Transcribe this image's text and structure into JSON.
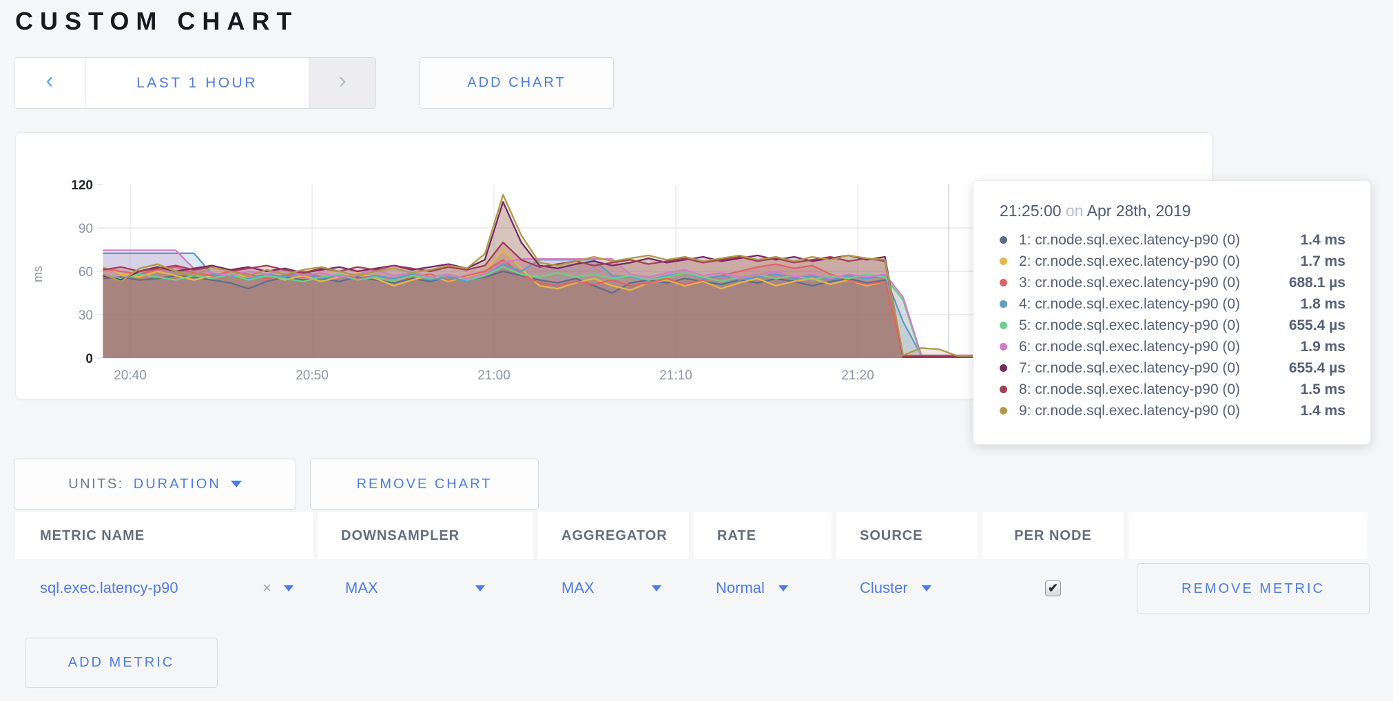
{
  "page": {
    "title": "CUSTOM CHART",
    "background": "#f5f6f7",
    "accent_blue": "#4d7ce2"
  },
  "toolbar": {
    "prev_icon": "‹",
    "next_icon": "›",
    "time_range_label": "LAST 1 HOUR",
    "add_chart_label": "ADD CHART"
  },
  "controls": {
    "units_label": "UNITS:",
    "units_value": "DURATION",
    "remove_chart_label": "REMOVE CHART",
    "add_metric_label": "ADD METRIC"
  },
  "tooltip": {
    "time": "21:25:00",
    "sep": " on ",
    "date": "Apr 28th, 2019",
    "rows": [
      {
        "color": "#5F6C8C",
        "label": "1: cr.node.sql.exec.latency-p90 (0)",
        "value": "1.4 ms"
      },
      {
        "color": "#E4B748",
        "label": "2: cr.node.sql.exec.latency-p90 (0)",
        "value": "1.7 ms"
      },
      {
        "color": "#DD6468",
        "label": "3: cr.node.sql.exec.latency-p90 (0)",
        "value": "688.1 µs"
      },
      {
        "color": "#5C9DC8",
        "label": "4: cr.node.sql.exec.latency-p90 (0)",
        "value": "1.8 ms"
      },
      {
        "color": "#6BD08B",
        "label": "5: cr.node.sql.exec.latency-p90 (0)",
        "value": "655.4 µs"
      },
      {
        "color": "#CF7EC4",
        "label": "6: cr.node.sql.exec.latency-p90 (0)",
        "value": "1.9 ms"
      },
      {
        "color": "#752A63",
        "label": "7: cr.node.sql.exec.latency-p90 (0)",
        "value": "655.4 µs"
      },
      {
        "color": "#A43E55",
        "label": "8: cr.node.sql.exec.latency-p90 (0)",
        "value": "1.5 ms"
      },
      {
        "color": "#B09A4E",
        "label": "9: cr.node.sql.exec.latency-p90 (0)",
        "value": "1.4 ms"
      }
    ]
  },
  "table": {
    "headers": [
      "METRIC NAME",
      "DOWNSAMPLER",
      "AGGREGATOR",
      "RATE",
      "SOURCE",
      "PER NODE"
    ],
    "row": {
      "metric_name": "sql.exec.latency-p90",
      "clear_icon": "×",
      "downsampler": "MAX",
      "aggregator": "MAX",
      "rate": "Normal",
      "source": "Cluster",
      "per_node_checked": true,
      "check_icon": "✔",
      "remove_metric_label": "REMOVE METRIC"
    }
  },
  "chart_data": {
    "type": "area",
    "title": "",
    "ylabel": "ms",
    "ylim": [
      0,
      120
    ],
    "yticks": [
      0,
      30,
      60,
      90,
      120
    ],
    "xticks": [
      {
        "label": "20:40",
        "min": 0
      },
      {
        "label": "20:50",
        "min": 10
      },
      {
        "label": "21:00",
        "min": 20
      },
      {
        "label": "21:10",
        "min": 30
      },
      {
        "label": "21:20",
        "min": 40
      }
    ],
    "hover_min": 45,
    "x_start_min": -1.5,
    "x_step_min": 1,
    "grid": true,
    "legend_position": "tooltip",
    "series": [
      {
        "name": "1: cr.node.sql.exec.latency-p90 (0)",
        "color": "#5F6C8C",
        "values": [
          55,
          56,
          54,
          55,
          57,
          56,
          54,
          52,
          48,
          53,
          56,
          54,
          55,
          53,
          56,
          54,
          52,
          55,
          53,
          56,
          54,
          56,
          60,
          57,
          54,
          52,
          55,
          50,
          45,
          52,
          54,
          52,
          55,
          53,
          51,
          54,
          52,
          55,
          53,
          50,
          53,
          55,
          52,
          54,
          1.4,
          1.4,
          1.4,
          1.4,
          1.4,
          1.4
        ]
      },
      {
        "name": "2: cr.node.sql.exec.latency-p90 (0)",
        "color": "#E4B748",
        "values": [
          63,
          58,
          56,
          60,
          57,
          54,
          57,
          60,
          55,
          58,
          54,
          57,
          53,
          56,
          59,
          55,
          50,
          54,
          57,
          53,
          56,
          60,
          75,
          62,
          50,
          48,
          52,
          55,
          50,
          47,
          52,
          54,
          50,
          53,
          48,
          52,
          55,
          50,
          53,
          55,
          51,
          54,
          50,
          53,
          1.7,
          1.7,
          1.7,
          1.7,
          1.7,
          1.7
        ]
      },
      {
        "name": "3: cr.node.sql.exec.latency-p90 (0)",
        "color": "#DD6468",
        "values": [
          62,
          60,
          58,
          61,
          63,
          59,
          57,
          60,
          58,
          55,
          57,
          60,
          56,
          58,
          55,
          57,
          53,
          56,
          58,
          54,
          57,
          60,
          68,
          58,
          52,
          50,
          53,
          51,
          54,
          50,
          52,
          55,
          51,
          54,
          57,
          60,
          63,
          65,
          62,
          64,
          58,
          54,
          51,
          53,
          0.7,
          0.7,
          0.7,
          0.7,
          0.7,
          0.7
        ]
      },
      {
        "name": "4: cr.node.sql.exec.latency-p90 (0)",
        "color": "#5C9DC8",
        "values": [
          72.5,
          72.5,
          72.5,
          72.5,
          72.5,
          72.5,
          58,
          57,
          55,
          58,
          56,
          59,
          55,
          57,
          54,
          57,
          55,
          58,
          54,
          56,
          53,
          57,
          65,
          60,
          68,
          68,
          68,
          68,
          57,
          56,
          54,
          57,
          59,
          55,
          57,
          54,
          56,
          58,
          55,
          57,
          54,
          57,
          55,
          57,
          25,
          1.8,
          1.8,
          1.8,
          1.8,
          1.8
        ]
      },
      {
        "name": "5: cr.node.sql.exec.latency-p90 (0)",
        "color": "#6BD08B",
        "values": [
          57,
          55,
          58,
          56,
          54,
          57,
          55,
          58,
          54,
          57,
          55,
          53,
          56,
          58,
          54,
          56,
          53,
          57,
          55,
          58,
          54,
          57,
          63,
          58,
          56,
          59,
          56,
          58,
          55,
          57,
          54,
          56,
          59,
          56,
          53,
          56,
          58,
          55,
          57,
          54,
          57,
          55,
          58,
          56,
          40,
          0.7,
          0.7,
          0.7,
          0.7,
          0.7
        ]
      },
      {
        "name": "6: cr.node.sql.exec.latency-p90 (0)",
        "color": "#CF7EC4",
        "values": [
          74.5,
          74.5,
          74.5,
          74.5,
          74.5,
          62,
          59,
          57,
          60,
          58,
          61,
          57,
          59,
          56,
          58,
          61,
          57,
          59,
          56,
          58,
          55,
          58,
          66,
          68.5,
          68.5,
          68.5,
          68.5,
          68.5,
          68.5,
          58,
          56,
          59,
          61,
          57,
          59,
          56,
          58,
          60,
          56,
          58,
          55,
          58,
          56,
          58,
          42,
          1.9,
          1.9,
          1.9,
          1.9,
          1.9
        ]
      },
      {
        "name": "7: cr.node.sql.exec.latency-p90 (0)",
        "color": "#752A63",
        "values": [
          57,
          54,
          60,
          63,
          60,
          62,
          64,
          61,
          63,
          60,
          62,
          59,
          61,
          63,
          60,
          62,
          64,
          61,
          63,
          65,
          62,
          68,
          108,
          80,
          64,
          62,
          65,
          67,
          64,
          66,
          69,
          66,
          68,
          70,
          67,
          69,
          71,
          68,
          70,
          67,
          69,
          71,
          68,
          70,
          0.7,
          0.7,
          0.7,
          0.7,
          0.7,
          0.7
        ]
      },
      {
        "name": "8: cr.node.sql.exec.latency-p90 (0)",
        "color": "#A43E55",
        "values": [
          61,
          63,
          60,
          62,
          64,
          61,
          63,
          60,
          62,
          64,
          61,
          59,
          62,
          60,
          63,
          61,
          64,
          62,
          60,
          63,
          61,
          64,
          80,
          68,
          63,
          65,
          67,
          64,
          66,
          68,
          65,
          67,
          69,
          66,
          68,
          70,
          67,
          69,
          66,
          68,
          70,
          67,
          69,
          67,
          1.5,
          1.5,
          1.5,
          1.5,
          1.5,
          1.5
        ]
      },
      {
        "name": "9: cr.node.sql.exec.latency-p90 (0)",
        "color": "#B09A4E",
        "values": [
          58,
          53,
          62,
          65,
          60,
          57,
          63,
          60,
          57,
          61,
          58,
          61,
          63,
          60,
          57,
          60,
          62,
          59,
          61,
          64,
          62,
          72,
          113,
          85,
          66,
          64,
          67,
          70,
          67,
          69,
          71,
          68,
          70,
          67,
          69,
          71,
          68,
          70,
          67,
          70,
          68,
          71,
          69,
          68,
          2,
          7,
          6,
          1.4,
          1.4,
          1.4
        ]
      }
    ]
  }
}
